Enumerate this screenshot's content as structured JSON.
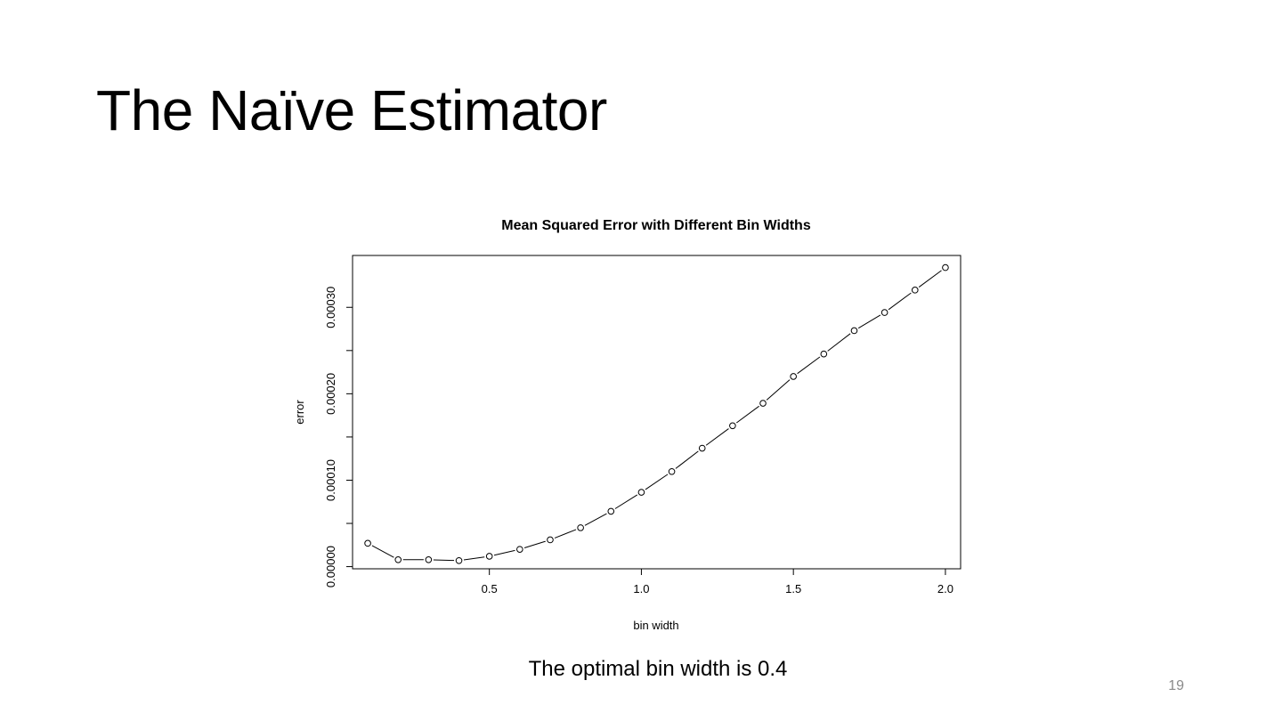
{
  "slide": {
    "title": "The Naïve Estimator",
    "caption": "The optimal bin width is 0.4",
    "page_number": "19"
  },
  "chart_data": {
    "type": "line",
    "title": "Mean Squared Error with Different Bin Widths",
    "xlabel": "bin width",
    "ylabel": "error",
    "x": [
      0.1,
      0.2,
      0.3,
      0.4,
      0.5,
      0.6,
      0.7,
      0.8,
      0.9,
      1.0,
      1.1,
      1.2,
      1.3,
      1.4,
      1.5,
      1.6,
      1.7,
      1.8,
      1.9,
      2.0
    ],
    "series": [
      {
        "values": [
          2.7e-05,
          8e-06,
          8e-06,
          7e-06,
          1.2e-05,
          2e-05,
          3.1e-05,
          4.5e-05,
          6.4e-05,
          8.6e-05,
          0.00011,
          0.000137,
          0.000163,
          0.000189,
          0.00022,
          0.000246,
          0.000273,
          0.000294,
          0.00032,
          0.000346
        ],
        "marker": "open-circle",
        "line_style": "solid",
        "color": "#000000"
      }
    ],
    "xlim": [
      0.05,
      2.05
    ],
    "ylim": [
      -2.5e-06,
      0.00036
    ],
    "x_ticks": [
      0.5,
      1.0,
      1.5,
      2.0
    ],
    "x_tick_labels": [
      "0.5",
      "1.0",
      "1.5",
      "2.0"
    ],
    "y_ticks": [
      0,
      5e-05,
      0.0001,
      0.00015,
      0.0002,
      0.00025,
      0.0003
    ],
    "y_tick_labels": [
      "0.00000",
      "",
      "0.00010",
      "",
      "0.00020",
      "",
      "0.00030"
    ],
    "grid": false,
    "legend": "none"
  }
}
